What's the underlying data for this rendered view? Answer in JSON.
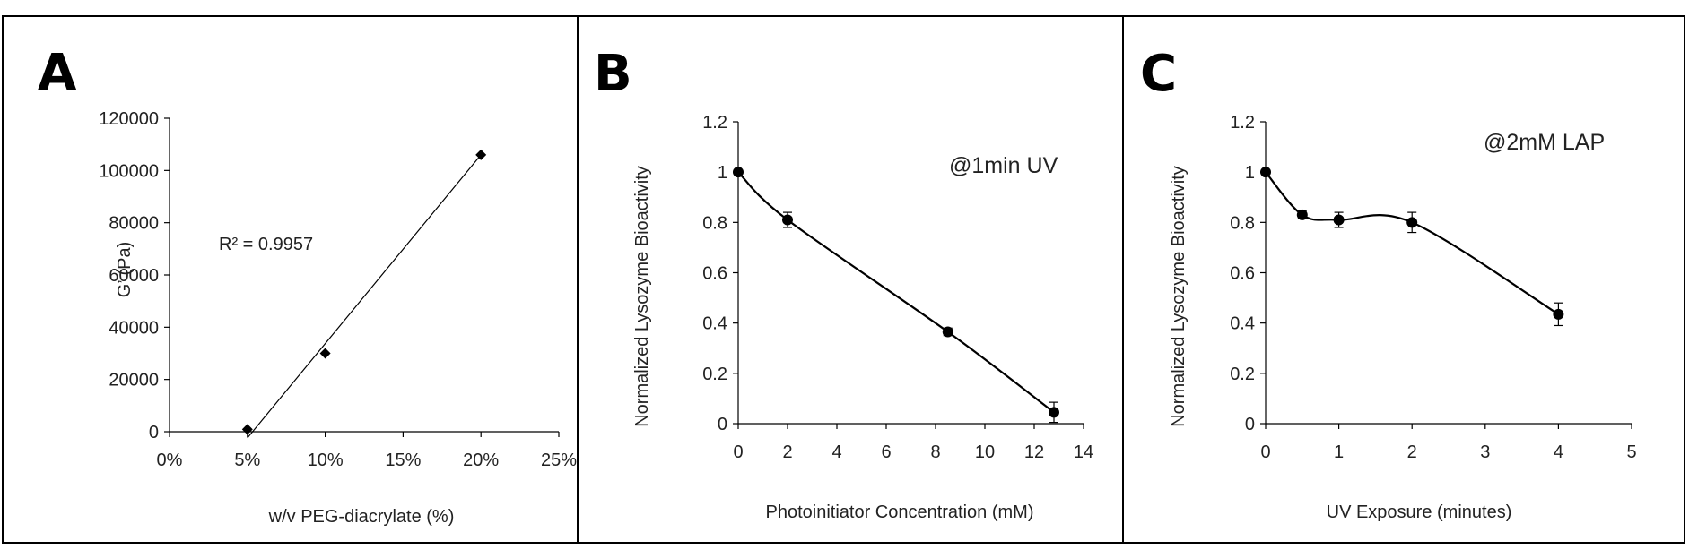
{
  "chart_data": [
    {
      "letter": "A",
      "type": "scatter",
      "xlabel": "w/v PEG-diacrylate (%)",
      "ylabel": "G’ (Pa)",
      "xticks": [
        "0%",
        "5%",
        "10%",
        "15%",
        "20%",
        "25%"
      ],
      "yticks": [
        "0",
        "20000",
        "40000",
        "60000",
        "80000",
        "100000",
        "120000"
      ],
      "xlim": [
        0,
        0.25
      ],
      "ylim": [
        0,
        120000
      ],
      "points": [
        {
          "x": 0.05,
          "y": 900
        },
        {
          "x": 0.1,
          "y": 30000
        },
        {
          "x": 0.2,
          "y": 106000
        }
      ],
      "trendline": {
        "type": "linear",
        "x": [
          0.05,
          0.2
        ],
        "y": [
          -2400,
          106000
        ]
      },
      "r_squared_label": "R² = 0.9957",
      "marker": "diamond",
      "grid": false
    },
    {
      "letter": "B",
      "type": "line",
      "xlabel": "Photoinitiator Concentration (mM)",
      "ylabel": "Normalized Lysozyme Bioactivity",
      "xticks": [
        "0",
        "2",
        "4",
        "6",
        "8",
        "10",
        "12",
        "14"
      ],
      "yticks": [
        "0",
        "0.2",
        "0.4",
        "0.6",
        "0.8",
        "1",
        "1.2"
      ],
      "xlim": [
        0,
        14
      ],
      "ylim": [
        0,
        1.2
      ],
      "points": [
        {
          "x": 0,
          "y": 1.0,
          "err": 0
        },
        {
          "x": 2,
          "y": 0.81,
          "err": 0.03
        },
        {
          "x": 8.5,
          "y": 0.365,
          "err": 0.015
        },
        {
          "x": 12.8,
          "y": 0.045,
          "err": 0.04
        }
      ],
      "annotation": "@1min UV",
      "marker": "circle",
      "grid": false
    },
    {
      "letter": "C",
      "type": "line",
      "xlabel": "UV Exposure (minutes)",
      "ylabel": "Normalized Lysozyme Bioactivity",
      "xticks": [
        "0",
        "1",
        "2",
        "3",
        "4",
        "5"
      ],
      "yticks": [
        "0",
        "0.2",
        "0.4",
        "0.6",
        "0.8",
        "1",
        "1.2"
      ],
      "xlim": [
        0,
        5
      ],
      "ylim": [
        0,
        1.2
      ],
      "points": [
        {
          "x": 0,
          "y": 1.0,
          "err": 0
        },
        {
          "x": 0.5,
          "y": 0.83,
          "err": 0.015
        },
        {
          "x": 1,
          "y": 0.81,
          "err": 0.03
        },
        {
          "x": 2,
          "y": 0.8,
          "err": 0.04
        },
        {
          "x": 4,
          "y": 0.435,
          "err": 0.045
        }
      ],
      "annotation": "@2mM LAP",
      "marker": "circle",
      "grid": false
    }
  ]
}
